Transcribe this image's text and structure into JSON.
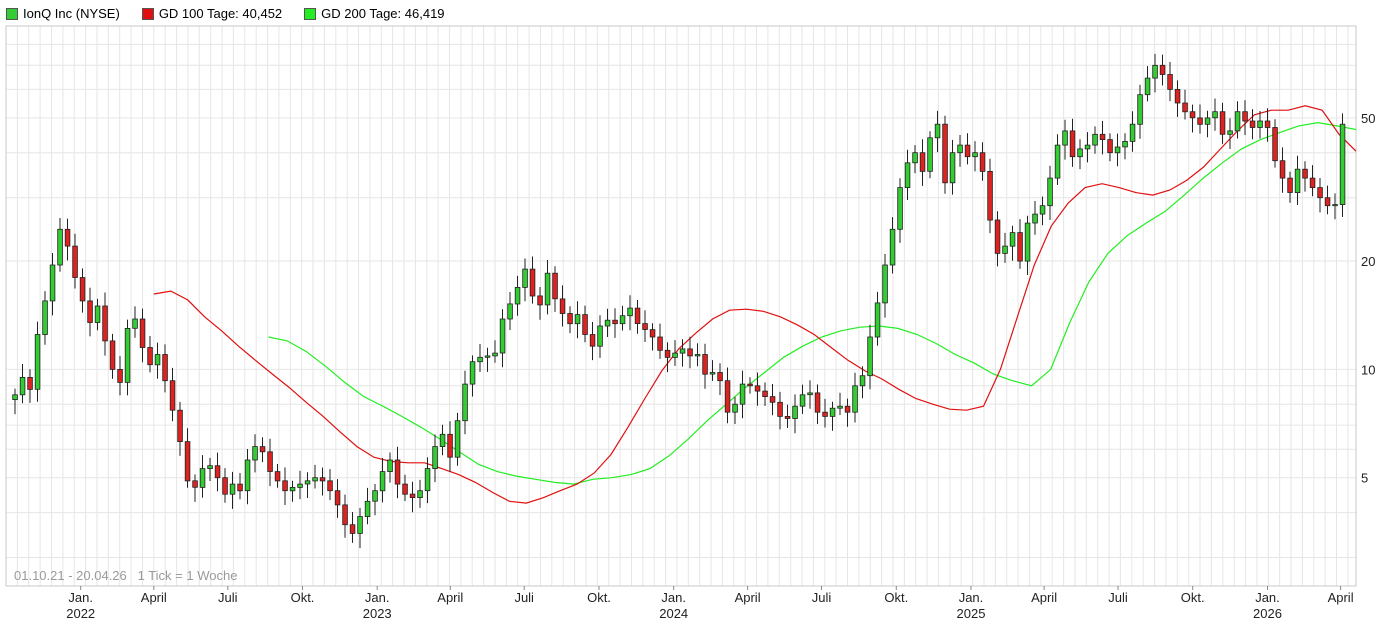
{
  "legend": {
    "item1": {
      "label": "IonQ Inc (NYSE)",
      "color": "#33cc33"
    },
    "item2": {
      "label": "GD 100 Tage: 40,452",
      "color": "#e01010"
    },
    "item3": {
      "label": "GD 200 Tage: 46,419",
      "color": "#22ee22"
    }
  },
  "footer_note": "01.10.21 - 20.04.26   1 Tick = 1 Woche",
  "chart_data": {
    "type": "candlestick",
    "title": "",
    "xlabel": "",
    "ylabel": "",
    "y_scale": "log",
    "ylim": [
      2.5,
      90
    ],
    "y_ticks": [
      {
        "value": 5,
        "label": "5"
      },
      {
        "value": 10,
        "label": "10"
      },
      {
        "value": 20,
        "label": "20"
      },
      {
        "value": 50,
        "label": "50"
      }
    ],
    "x_range": [
      "2021-10-01",
      "2026-04-20"
    ],
    "x_ticks": [
      {
        "date": "2022-01-01",
        "label": "Jan.",
        "year": "2022"
      },
      {
        "date": "2022-04-01",
        "label": "April",
        "year": ""
      },
      {
        "date": "2022-07-01",
        "label": "Juli",
        "year": ""
      },
      {
        "date": "2022-10-01",
        "label": "Okt.",
        "year": ""
      },
      {
        "date": "2023-01-01",
        "label": "Jan.",
        "year": "2023"
      },
      {
        "date": "2023-04-01",
        "label": "April",
        "year": ""
      },
      {
        "date": "2023-07-01",
        "label": "Juli",
        "year": ""
      },
      {
        "date": "2023-10-01",
        "label": "Okt.",
        "year": ""
      },
      {
        "date": "2024-01-01",
        "label": "Jan.",
        "year": "2024"
      },
      {
        "date": "2024-04-01",
        "label": "April",
        "year": ""
      },
      {
        "date": "2024-07-01",
        "label": "Juli",
        "year": ""
      },
      {
        "date": "2024-10-01",
        "label": "Okt.",
        "year": ""
      },
      {
        "date": "2025-01-01",
        "label": "Jan.",
        "year": "2025"
      },
      {
        "date": "2025-04-01",
        "label": "April",
        "year": ""
      },
      {
        "date": "2025-07-01",
        "label": "Juli",
        "year": ""
      },
      {
        "date": "2025-10-01",
        "label": "Okt.",
        "year": ""
      },
      {
        "date": "2026-01-01",
        "label": "Jan.",
        "year": "2026"
      },
      {
        "date": "2026-04-01",
        "label": "April",
        "year": ""
      }
    ],
    "grid": true,
    "legend_position": "top-left",
    "series": [
      {
        "name": "IonQ Inc (NYSE)",
        "kind": "candlestick",
        "up_color": "#33cc33",
        "down_color": "#dd2222",
        "closes": [
          8.5,
          9.5,
          8.8,
          12.5,
          15.5,
          19.5,
          24.5,
          22.0,
          18.0,
          15.5,
          13.5,
          15.0,
          12.0,
          10.0,
          9.2,
          13.0,
          13.8,
          11.5,
          10.3,
          11.0,
          9.3,
          7.7,
          6.3,
          4.9,
          4.7,
          5.3,
          5.4,
          5.0,
          4.5,
          4.8,
          4.6,
          5.6,
          6.1,
          5.9,
          5.2,
          4.9,
          4.6,
          4.7,
          4.8,
          4.9,
          5.0,
          4.9,
          4.6,
          4.2,
          3.7,
          3.5,
          3.9,
          4.3,
          4.6,
          5.2,
          5.6,
          4.8,
          4.5,
          4.4,
          4.6,
          5.3,
          6.1,
          6.6,
          5.7,
          7.2,
          9.1,
          10.5,
          10.8,
          10.9,
          11.1,
          13.8,
          15.2,
          16.9,
          19.0,
          16.0,
          15.1,
          18.5,
          15.7,
          14.3,
          13.4,
          14.2,
          12.5,
          11.6,
          13.2,
          13.7,
          13.4,
          14.1,
          14.8,
          13.4,
          12.9,
          12.3,
          11.3,
          10.8,
          11.1,
          11.4,
          10.9,
          11.0,
          9.7,
          9.8,
          9.3,
          7.6,
          8.0,
          9.1,
          9.0,
          8.7,
          8.4,
          8.1,
          7.4,
          7.3,
          7.9,
          8.5,
          8.6,
          7.6,
          7.4,
          7.8,
          7.9,
          7.6,
          9.0,
          9.6,
          12.3,
          15.3,
          19.5,
          24.5,
          32.0,
          37.5,
          40.0,
          35.5,
          44.0,
          48.0,
          33.0,
          40.0,
          42.0,
          39.0,
          40.0,
          35.5,
          26.0,
          21.0,
          22.0,
          24.0,
          20.0,
          25.5,
          27.0,
          28.5,
          34.0,
          42.0,
          46.0,
          39.0,
          41.0,
          42.0,
          45.0,
          43.5,
          40.0,
          41.5,
          43.0,
          48.0,
          58.0,
          64.5,
          70.0,
          66.0,
          60.0,
          55.0,
          52.0,
          50.0,
          48.0,
          50.0,
          52.0,
          45.0,
          46.0,
          52.0,
          49.0,
          47.0,
          49.0,
          47.0,
          38.0,
          34.0,
          31.0,
          36.0,
          34.0,
          32.0,
          30.0,
          28.5,
          28.7,
          48.0
        ]
      },
      {
        "name": "GD 100 Tage: 40,452",
        "kind": "line",
        "color": "#e01010",
        "start_date": "2022-04-01",
        "points": [
          16.2,
          16.5,
          15.6,
          14.0,
          12.8,
          11.6,
          10.6,
          9.7,
          8.9,
          8.1,
          7.4,
          6.7,
          6.1,
          5.7,
          5.55,
          5.5,
          5.5,
          5.3,
          5.1,
          4.85,
          4.55,
          4.3,
          4.25,
          4.4,
          4.6,
          4.8,
          5.15,
          5.8,
          6.9,
          8.3,
          9.9,
          11.4,
          12.6,
          13.8,
          14.6,
          14.7,
          14.5,
          14.0,
          13.3,
          12.5,
          11.5,
          10.6,
          9.9,
          9.4,
          8.8,
          8.3,
          8.0,
          7.75,
          7.7,
          7.9,
          10.0,
          14.0,
          19.5,
          25.0,
          29.0,
          32.0,
          32.8,
          32.0,
          31.0,
          30.5,
          31.5,
          33.5,
          36.5,
          41.0,
          46.0,
          51.0,
          52.5,
          52.5,
          54.0,
          52.5,
          45.0,
          40.4
        ]
      },
      {
        "name": "GD 200 Tage: 46,419",
        "kind": "line",
        "color": "#22ee22",
        "start_date": "2022-08-20",
        "points": [
          12.3,
          12.0,
          11.2,
          10.2,
          9.2,
          8.4,
          7.9,
          7.4,
          6.9,
          6.4,
          5.9,
          5.45,
          5.2,
          5.05,
          4.95,
          4.85,
          4.8,
          4.95,
          5.0,
          5.1,
          5.3,
          5.75,
          6.4,
          7.2,
          8.0,
          8.9,
          9.8,
          10.8,
          11.6,
          12.3,
          12.8,
          13.1,
          13.2,
          13.0,
          12.5,
          11.8,
          11.0,
          10.4,
          9.7,
          9.3,
          9.0,
          10.0,
          13.5,
          17.5,
          21.0,
          23.5,
          25.5,
          27.5,
          30.5,
          34.0,
          37.5,
          41.0,
          43.5,
          45.5,
          47.5,
          48.5,
          47.5,
          46.4
        ]
      }
    ]
  }
}
